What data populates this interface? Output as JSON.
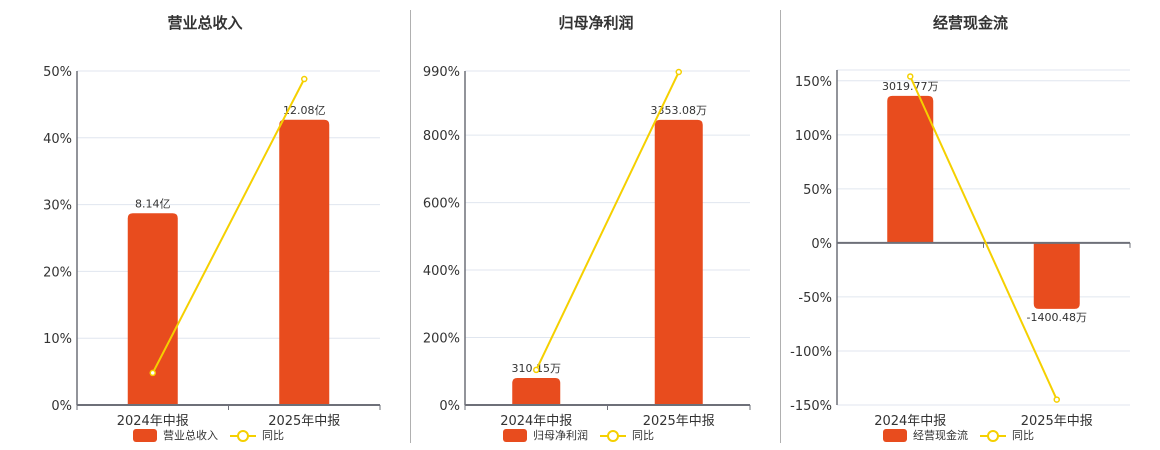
{
  "colors": {
    "bar": "#e84c1e",
    "line": "#f5d000",
    "grid": "#e0e6ef",
    "axis": "#6e7079",
    "separator": "#b0b0b0"
  },
  "legend": {
    "yoy_label": "同比"
  },
  "chart_data": [
    {
      "type": "bar+line",
      "title": "营业总收入",
      "categories": [
        "2024年中报",
        "2025年中报"
      ],
      "series": [
        {
          "name": "营业总收入",
          "type": "bar",
          "values_pct_axis": [
            28.7,
            42.7
          ],
          "labels": [
            "8.14亿",
            "12.08亿"
          ]
        },
        {
          "name": "同比",
          "type": "line",
          "values": [
            4.8,
            48.8
          ]
        }
      ],
      "ylabel": "",
      "xlabel": "",
      "ylim": [
        0,
        50
      ],
      "yticks": [
        "0%",
        "10%",
        "20%",
        "30%",
        "40%",
        "50%"
      ],
      "ytick_values": [
        0,
        10,
        20,
        30,
        40,
        50
      ],
      "grid": true,
      "legend_position": "bottom"
    },
    {
      "type": "bar+line",
      "title": "归母净利润",
      "categories": [
        "2024年中报",
        "2025年中报"
      ],
      "series": [
        {
          "name": "归母净利润",
          "type": "bar",
          "values_pct_axis": [
            80,
            845
          ],
          "labels": [
            "310.15万",
            "3353.08万"
          ]
        },
        {
          "name": "同比",
          "type": "line",
          "values": [
            104,
            987
          ]
        }
      ],
      "ylabel": "",
      "xlabel": "",
      "ylim": [
        0,
        990
      ],
      "yticks": [
        "0%",
        "200%",
        "400%",
        "600%",
        "800%",
        "990%"
      ],
      "ytick_values": [
        0,
        200,
        400,
        600,
        800,
        990
      ],
      "grid": true,
      "legend_position": "bottom"
    },
    {
      "type": "bar+line",
      "title": "经营现金流",
      "categories": [
        "2024年中报",
        "2025年中报"
      ],
      "series": [
        {
          "name": "经营现金流",
          "type": "bar",
          "values_pct_axis": [
            136,
            -61
          ],
          "labels": [
            "3019.77万",
            "-1400.48万"
          ]
        },
        {
          "name": "同比",
          "type": "line",
          "values": [
            154,
            -145
          ]
        }
      ],
      "ylabel": "",
      "xlabel": "",
      "ylim": [
        -150,
        160
      ],
      "yticks": [
        "-150%",
        "-100%",
        "-50%",
        "0%",
        "50%",
        "100%",
        "150%"
      ],
      "ytick_values": [
        -150,
        -100,
        -50,
        0,
        50,
        100,
        150
      ],
      "grid": true,
      "legend_position": "bottom"
    }
  ]
}
